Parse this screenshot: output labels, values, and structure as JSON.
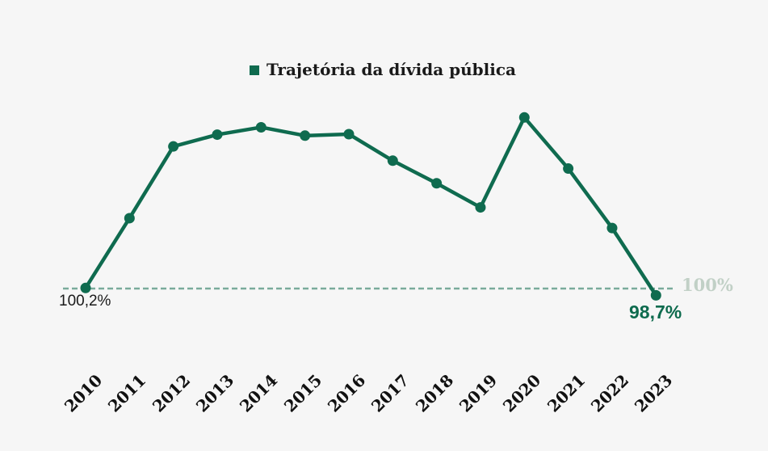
{
  "background": "#f6f6f6",
  "legend": {
    "label": "Trajetória da dívida pública"
  },
  "annotations": {
    "start_value": "100,2%",
    "end_value": "98,7%",
    "baseline_label": "100%"
  },
  "colors": {
    "line": "#0f6b4f",
    "point": "#0f6b4f",
    "dashed_baseline": "#7aab9b",
    "baseline_label": "#c1d0c6",
    "end_value_text": "#0e6b4e",
    "text": "#1a1a1a"
  },
  "chart_data": {
    "type": "line",
    "title": "",
    "legend_entries": [
      "Trajetória da dívida pública"
    ],
    "legend_position": "top-center",
    "grid": false,
    "x": [
      2010,
      2011,
      2012,
      2013,
      2014,
      2015,
      2016,
      2017,
      2018,
      2019,
      2020,
      2021,
      2022,
      2023
    ],
    "series": [
      {
        "name": "Trajetória da dívida pública",
        "values": [
          100.2,
          114.4,
          129.0,
          131.4,
          132.9,
          131.2,
          131.5,
          126.1,
          121.5,
          116.6,
          134.9,
          124.5,
          112.4,
          98.7
        ]
      }
    ],
    "ylim": [
      95,
      140
    ],
    "baseline": {
      "value": 100,
      "label": "100%",
      "style": "dashed"
    },
    "point_labels": [
      {
        "x": 2010,
        "text": "100,2%"
      },
      {
        "x": 2023,
        "text": "98,7%"
      }
    ]
  }
}
